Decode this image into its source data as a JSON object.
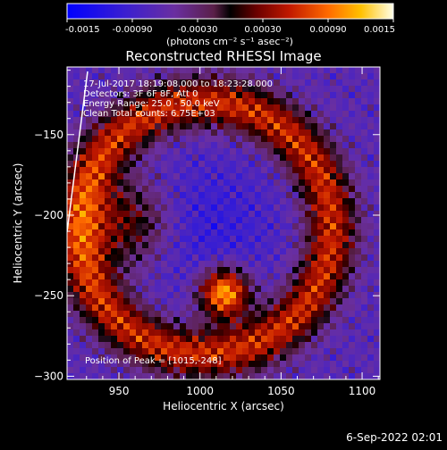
{
  "chart_data": {
    "type": "heatmap",
    "title": "Reconstructed RHESSI Image",
    "xlabel": "Heliocentric X (arcsec)",
    "ylabel": "Heliocentric Y (arcsec)",
    "xlim": [
      918,
      1111
    ],
    "ylim": [
      -302,
      -108
    ],
    "xticks": [
      950,
      1000,
      1050,
      1100
    ],
    "yticks": [
      -150,
      -200,
      -250,
      -300
    ],
    "colorbar": {
      "range": [
        -0.0015,
        0.0015
      ],
      "ticks": [
        "-0.0015",
        "-0.00090",
        "-0.00030",
        "0.00030",
        "0.00090",
        "0.0015"
      ],
      "unit_label": "(photons cm⁻² s⁻¹ asec⁻²)",
      "colormap": "rhessi-blue-to-white"
    },
    "annotations": [
      "17-Jul-2017 18:19:08.000 to 18:23:28.000",
      "Detectors: 3F 6F 8F, Att 0",
      "Energy Range: 25.0 - 50.0 keV",
      "Clean    Total counts: 6.75E+03"
    ],
    "peak_label": "Position of Peak = [1015,-248]",
    "peak": [
      1015,
      -248
    ],
    "limb_line": true
  },
  "footer": {
    "timestamp": "6-Sep-2022 02:01"
  }
}
